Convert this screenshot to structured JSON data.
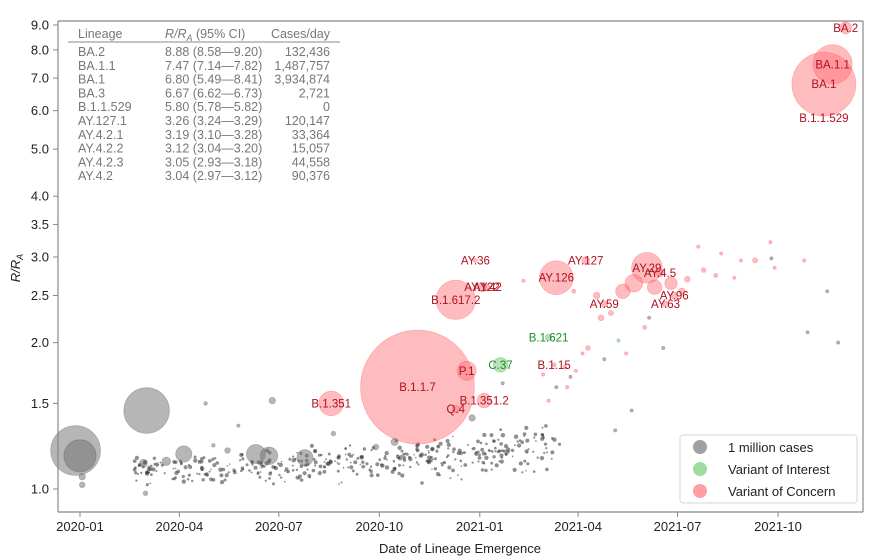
{
  "chart_data": {
    "type": "scatter",
    "subtype": "bubble",
    "title": "",
    "xlabel": "Date of Lineage Emergence",
    "ylabel": "R/R_A",
    "ylabel_main": "R/R",
    "ylabel_sub": "A",
    "yscale": "log",
    "ylim": [
      0.9,
      9.2
    ],
    "xlim": [
      "2019-12-12",
      "2021-12-18"
    ],
    "x_ticks": [
      "2020-01",
      "2020-04",
      "2020-07",
      "2020-10",
      "2021-01",
      "2021-04",
      "2021-07",
      "2021-10"
    ],
    "y_ticks": [
      1.0,
      1.5,
      2.0,
      2.5,
      3.0,
      3.5,
      4.0,
      5.0,
      6.0,
      7.0,
      8.0,
      9.0
    ],
    "y_tick_labels": [
      "1.0",
      "1.5",
      "2.0",
      "2.5",
      "3.0",
      "3.5",
      "4.0",
      "5.0",
      "6.0",
      "7.0",
      "8.0",
      "9.0"
    ],
    "grid": false,
    "legend": {
      "placement": "bottom-right",
      "entries": [
        {
          "label": "1 million cases",
          "color": "#808080"
        },
        {
          "label": "Variant of Interest",
          "color": "#7fd07f"
        },
        {
          "label": "Variant of Concern",
          "color": "#ff7f86"
        }
      ]
    },
    "colors": {
      "other": "#7a7a7a",
      "voi": "#5cc45c",
      "voc": "#ff6a72",
      "voc_text": "#b01020",
      "voi_text": "#1f8a2a"
    },
    "table": {
      "headers": [
        "Lineage",
        "R/R_A (95% CI)",
        "Cases/day"
      ],
      "header_r_main": "R/R",
      "header_r_sub": "A",
      "header_r_rest": " (95% CI)",
      "rows": [
        [
          "BA.2",
          "8.88 (8.58—9.20)",
          "132,436"
        ],
        [
          "BA.1.1",
          "7.47 (7.14—7.82)",
          "1,487,757"
        ],
        [
          "BA.1",
          "6.80 (5.49—8.41)",
          "3,934,874"
        ],
        [
          "BA.3",
          "6.67 (6.62—6.73)",
          "2,721"
        ],
        [
          "B.1.1.529",
          "5.80 (5.78—5.82)",
          "0"
        ],
        [
          "AY.127.1",
          "3.26 (3.24—3.29)",
          "120,147"
        ],
        [
          "AY.4.2.1",
          "3.19 (3.10—3.28)",
          "33,364"
        ],
        [
          "AY.4.2.2",
          "3.12 (3.04—3.20)",
          "15,057"
        ],
        [
          "AY.4.2.3",
          "3.05 (2.93—3.18)",
          "44,558"
        ],
        [
          "AY.4.2",
          "3.04 (2.97—3.12)",
          "90,376"
        ]
      ]
    },
    "labeled_points": [
      {
        "label": "BA.2",
        "date": "2021-12-02",
        "r": 8.88,
        "cases": 132436,
        "cat": "voc"
      },
      {
        "label": "BA.1.1",
        "date": "2021-11-20",
        "r": 7.47,
        "cases": 1487757,
        "cat": "voc"
      },
      {
        "label": "BA.1",
        "date": "2021-11-12",
        "r": 6.8,
        "cases": 3934874,
        "cat": "voc"
      },
      {
        "label": "B.1.1.529",
        "date": "2021-11-12",
        "r": 5.8,
        "cases": 0,
        "cat": "voc",
        "label_only": true
      },
      {
        "label": "B.1.1.7",
        "date": "2020-11-05",
        "r": 1.62,
        "cases": 12500000,
        "cat": "voc"
      },
      {
        "label": "B.1.617.2",
        "date": "2020-12-10",
        "r": 2.45,
        "cases": 1500000,
        "cat": "voc"
      },
      {
        "label": "B.1.351",
        "date": "2020-08-18",
        "r": 1.5,
        "cases": 580000,
        "cat": "voc"
      },
      {
        "label": "P.1",
        "date": "2020-12-20",
        "r": 1.75,
        "cases": 350000,
        "cat": "voc"
      },
      {
        "label": "Q.4",
        "date": "2020-12-10",
        "r": 1.46,
        "cases": 60000,
        "cat": "voc"
      },
      {
        "label": "B.1.351.2",
        "date": "2021-01-05",
        "r": 1.52,
        "cases": 200000,
        "cat": "voc"
      },
      {
        "label": "AY.36",
        "date": "2020-12-28",
        "r": 2.95,
        "cases": 15000,
        "cat": "voc"
      },
      {
        "label": "AY.122",
        "date": "2021-01-03",
        "r": 2.6,
        "cases": 80000,
        "cat": "voc"
      },
      {
        "label": "AY.42",
        "date": "2021-01-08",
        "r": 2.6,
        "cases": 30000,
        "cat": "voc"
      },
      {
        "label": "AY.126",
        "date": "2021-03-12",
        "r": 2.72,
        "cases": 1100000,
        "cat": "voc"
      },
      {
        "label": "AY.127",
        "date": "2021-04-08",
        "r": 2.95,
        "cases": 60000,
        "cat": "voc"
      },
      {
        "label": "AY.29",
        "date": "2021-06-03",
        "r": 2.85,
        "cases": 900000,
        "cat": "voc"
      },
      {
        "label": "AY.4.5",
        "date": "2021-06-15",
        "r": 2.78,
        "cases": 50000,
        "cat": "voc"
      },
      {
        "label": "AY.59",
        "date": "2021-04-25",
        "r": 2.4,
        "cases": 40000,
        "cat": "voc"
      },
      {
        "label": "AY.96",
        "date": "2021-06-28",
        "r": 2.5,
        "cases": 40000,
        "cat": "voc"
      },
      {
        "label": "AY.63",
        "date": "2021-06-20",
        "r": 2.4,
        "cases": 30000,
        "cat": "voc"
      },
      {
        "label": "B.1.621",
        "date": "2021-03-05",
        "r": 2.05,
        "cases": 40000,
        "cat": "voi"
      },
      {
        "label": "C.37",
        "date": "2021-01-20",
        "r": 1.8,
        "cases": 200000,
        "cat": "voi"
      },
      {
        "label": "B.1.15",
        "date": "2021-03-10",
        "r": 1.8,
        "cases": 15000,
        "cat": "voc"
      }
    ],
    "unlabeled_points": [
      {
        "date": "2019-12-28",
        "r": 1.2,
        "cases": 2400000,
        "cat": "other"
      },
      {
        "date": "2020-01-01",
        "r": 1.17,
        "cases": 1000000,
        "cat": "other"
      },
      {
        "date": "2020-01-03",
        "r": 1.06,
        "cases": 40000,
        "cat": "other"
      },
      {
        "date": "2020-01-03",
        "r": 1.02,
        "cases": 30000,
        "cat": "other"
      },
      {
        "date": "2020-03-02",
        "r": 1.45,
        "cases": 2000000,
        "cat": "other"
      },
      {
        "date": "2020-06-25",
        "r": 1.52,
        "cases": 40000,
        "cat": "other"
      },
      {
        "date": "2020-04-25",
        "r": 1.5,
        "cases": 12000,
        "cat": "other"
      },
      {
        "date": "2020-05-25",
        "r": 1.35,
        "cases": 8000,
        "cat": "other"
      },
      {
        "date": "2020-04-05",
        "r": 1.18,
        "cases": 250000,
        "cat": "other"
      },
      {
        "date": "2020-06-10",
        "r": 1.18,
        "cases": 350000,
        "cat": "other"
      },
      {
        "date": "2020-06-22",
        "r": 1.17,
        "cases": 300000,
        "cat": "other"
      },
      {
        "date": "2020-07-25",
        "r": 1.16,
        "cases": 250000,
        "cat": "other"
      },
      {
        "date": "2020-03-20",
        "r": 1.14,
        "cases": 70000,
        "cat": "other"
      },
      {
        "date": "2020-02-28",
        "r": 1.13,
        "cases": 60000,
        "cat": "other"
      },
      {
        "date": "2020-03-01",
        "r": 0.98,
        "cases": 20000,
        "cat": "other"
      },
      {
        "date": "2020-05-15",
        "r": 1.2,
        "cases": 30000,
        "cat": "other"
      },
      {
        "date": "2020-05-02",
        "r": 1.23,
        "cases": 12000,
        "cat": "other"
      },
      {
        "date": "2020-08-20",
        "r": 1.3,
        "cases": 20000,
        "cat": "other"
      },
      {
        "date": "2020-09-28",
        "r": 1.22,
        "cases": 30000,
        "cat": "other"
      },
      {
        "date": "2020-10-15",
        "r": 1.25,
        "cases": 50000,
        "cat": "other"
      },
      {
        "date": "2020-12-25",
        "r": 1.4,
        "cases": 40000,
        "cat": "other"
      },
      {
        "date": "2021-01-22",
        "r": 1.65,
        "cases": 10000,
        "cat": "other"
      },
      {
        "date": "2021-03-12",
        "r": 1.62,
        "cases": 10000,
        "cat": "other"
      },
      {
        "date": "2021-03-25",
        "r": 1.7,
        "cases": 8000,
        "cat": "other"
      },
      {
        "date": "2021-04-25",
        "r": 1.85,
        "cases": 4000,
        "cat": "other"
      },
      {
        "date": "2021-05-20",
        "r": 1.45,
        "cases": 6000,
        "cat": "other"
      },
      {
        "date": "2021-05-05",
        "r": 1.32,
        "cases": 4000,
        "cat": "other"
      },
      {
        "date": "2021-06-18",
        "r": 1.95,
        "cases": 4000,
        "cat": "other"
      },
      {
        "date": "2021-09-25",
        "r": 2.98,
        "cases": 1000,
        "cat": "other"
      },
      {
        "date": "2021-06-05",
        "r": 2.25,
        "cases": 5000,
        "cat": "other"
      },
      {
        "date": "2021-10-28",
        "r": 2.1,
        "cases": 800,
        "cat": "other"
      },
      {
        "date": "2021-11-25",
        "r": 2.0,
        "cases": 800,
        "cat": "other"
      },
      {
        "date": "2021-11-15",
        "r": 2.55,
        "cases": 800,
        "cat": "other"
      },
      {
        "date": "2021-05-08",
        "r": 2.02,
        "cases": 3000,
        "cat": "voi"
      },
      {
        "date": "2021-04-10",
        "r": 1.95,
        "cases": 20000,
        "cat": "voc"
      },
      {
        "date": "2021-04-22",
        "r": 2.25,
        "cases": 30000,
        "cat": "voc"
      },
      {
        "date": "2021-05-01",
        "r": 2.3,
        "cases": 25000,
        "cat": "voc"
      },
      {
        "date": "2021-05-12",
        "r": 2.55,
        "cases": 200000,
        "cat": "voc"
      },
      {
        "date": "2021-05-22",
        "r": 2.65,
        "cases": 300000,
        "cat": "voc"
      },
      {
        "date": "2021-06-10",
        "r": 2.6,
        "cases": 200000,
        "cat": "voc"
      },
      {
        "date": "2021-06-25",
        "r": 2.65,
        "cases": 150000,
        "cat": "voc"
      },
      {
        "date": "2021-07-10",
        "r": 2.7,
        "cases": 30000,
        "cat": "voc"
      },
      {
        "date": "2021-07-25",
        "r": 2.82,
        "cases": 20000,
        "cat": "voc"
      },
      {
        "date": "2021-08-05",
        "r": 2.75,
        "cases": 15000,
        "cat": "voc"
      },
      {
        "date": "2021-08-22",
        "r": 2.72,
        "cases": 10000,
        "cat": "voc"
      },
      {
        "date": "2021-09-10",
        "r": 2.95,
        "cases": 25000,
        "cat": "voc"
      },
      {
        "date": "2021-09-24",
        "r": 3.22,
        "cases": 6000,
        "cat": "voc"
      },
      {
        "date": "2021-10-25",
        "r": 2.95,
        "cases": 6000,
        "cat": "voc"
      },
      {
        "date": "2021-07-20",
        "r": 3.15,
        "cases": 5000,
        "cat": "voc"
      },
      {
        "date": "2021-08-10",
        "r": 3.05,
        "cases": 8000,
        "cat": "voc"
      },
      {
        "date": "2021-08-28",
        "r": 2.95,
        "cases": 10000,
        "cat": "voc"
      },
      {
        "date": "2021-09-28",
        "r": 2.85,
        "cases": 5000,
        "cat": "voc"
      },
      {
        "date": "2021-07-05",
        "r": 2.55,
        "cases": 40000,
        "cat": "voc"
      },
      {
        "date": "2021-06-01",
        "r": 2.15,
        "cases": 15000,
        "cat": "voc"
      },
      {
        "date": "2021-05-15",
        "r": 1.9,
        "cases": 10000,
        "cat": "voc"
      },
      {
        "date": "2021-04-18",
        "r": 2.5,
        "cases": 40000,
        "cat": "voc"
      },
      {
        "date": "2021-03-28",
        "r": 2.55,
        "cases": 15000,
        "cat": "voc"
      },
      {
        "date": "2021-02-10",
        "r": 2.68,
        "cases": 8000,
        "cat": "voc"
      },
      {
        "date": "2021-02-28",
        "r": 1.72,
        "cases": 10000,
        "cat": "voc"
      },
      {
        "date": "2021-03-20",
        "r": 1.78,
        "cases": 15000,
        "cat": "voc"
      },
      {
        "date": "2021-03-22",
        "r": 1.62,
        "cases": 8000,
        "cat": "voc"
      },
      {
        "date": "2021-03-05",
        "r": 1.52,
        "cases": 6000,
        "cat": "voc"
      },
      {
        "date": "2021-03-30",
        "r": 1.75,
        "cases": 4000,
        "cat": "voc"
      },
      {
        "date": "2021-04-05",
        "r": 1.9,
        "cases": 5000,
        "cat": "voc"
      }
    ],
    "dense_cluster": {
      "description": "many small gray points (other lineages) along R≈1.05–1.2 from 2020-03 to 2021-03",
      "date_range": [
        "2020-02-20",
        "2021-03-15"
      ],
      "r_range": [
        0.95,
        1.35
      ],
      "cat": "other"
    }
  }
}
